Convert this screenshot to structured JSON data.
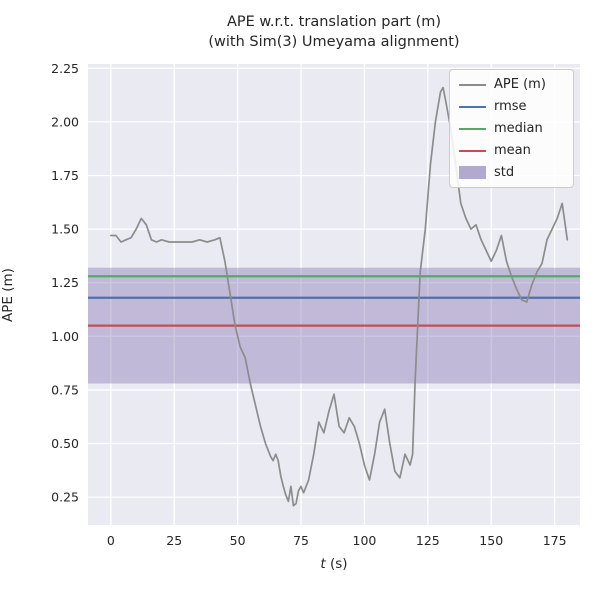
{
  "title_line1": "APE w.r.t. translation part (m)",
  "title_line2": "(with Sim(3) Umeyama alignment)",
  "labels": {
    "xlabel_var": "t",
    "xlabel_unit": " (s)",
    "ylabel": "APE (m)"
  },
  "legend": {
    "ape": "APE (m)",
    "rmse": "rmse",
    "median": "median",
    "mean": "mean",
    "std": "std"
  },
  "chart_data": {
    "type": "line",
    "title": "APE w.r.t. translation part (m)\n(with Sim(3) Umeyama alignment)",
    "xlabel": "t (s)",
    "ylabel": "APE (m)",
    "xlim": [
      -9,
      185
    ],
    "ylim": [
      0.12,
      2.27
    ],
    "xticks": [
      0,
      25,
      50,
      75,
      100,
      125,
      150,
      175
    ],
    "yticks": [
      0.25,
      0.5,
      0.75,
      1.0,
      1.25,
      1.5,
      1.75,
      2.0,
      2.25
    ],
    "grid": true,
    "legend_position": "upper right",
    "colors": {
      "plot_bg": "#eaeaf2",
      "grid": "#ffffff",
      "text": "#262626"
    },
    "series": [
      {
        "name": "APE (m)",
        "color": "#8c8c8c",
        "x": [
          0,
          2,
          4,
          6,
          8,
          10,
          12,
          14,
          16,
          18,
          20,
          23,
          26,
          29,
          32,
          35,
          38,
          41,
          43,
          45,
          47,
          49,
          51,
          53,
          55,
          57,
          59,
          61,
          63,
          64,
          65,
          66,
          67,
          68,
          69,
          70,
          71,
          72,
          73,
          74,
          75,
          76,
          78,
          80,
          82,
          84,
          86,
          88,
          90,
          92,
          94,
          96,
          98,
          100,
          102,
          104,
          106,
          108,
          110,
          112,
          114,
          116,
          118,
          119,
          120,
          122,
          124,
          126,
          128,
          130,
          131,
          132,
          134,
          136,
          138,
          140,
          142,
          144,
          146,
          148,
          150,
          152,
          154,
          156,
          158,
          160,
          162,
          164,
          166,
          168,
          170,
          172,
          174,
          176,
          178,
          180
        ],
        "y": [
          1.47,
          1.47,
          1.44,
          1.45,
          1.46,
          1.5,
          1.55,
          1.52,
          1.45,
          1.44,
          1.45,
          1.44,
          1.44,
          1.44,
          1.44,
          1.45,
          1.44,
          1.45,
          1.46,
          1.35,
          1.2,
          1.05,
          0.95,
          0.9,
          0.78,
          0.68,
          0.58,
          0.5,
          0.44,
          0.42,
          0.45,
          0.42,
          0.35,
          0.3,
          0.26,
          0.23,
          0.3,
          0.21,
          0.22,
          0.28,
          0.3,
          0.27,
          0.33,
          0.45,
          0.6,
          0.55,
          0.65,
          0.73,
          0.58,
          0.55,
          0.62,
          0.58,
          0.5,
          0.4,
          0.33,
          0.45,
          0.6,
          0.66,
          0.5,
          0.37,
          0.34,
          0.45,
          0.4,
          0.45,
          0.8,
          1.3,
          1.5,
          1.8,
          2.0,
          2.14,
          2.16,
          2.1,
          1.97,
          1.8,
          1.62,
          1.55,
          1.5,
          1.52,
          1.45,
          1.4,
          1.35,
          1.4,
          1.47,
          1.35,
          1.28,
          1.22,
          1.17,
          1.16,
          1.24,
          1.3,
          1.34,
          1.45,
          1.5,
          1.55,
          1.62,
          1.45
        ]
      }
    ],
    "stat_lines": [
      {
        "name": "rmse",
        "value": 1.18,
        "color": "#4c72b0"
      },
      {
        "name": "median",
        "value": 1.28,
        "color": "#55a868"
      },
      {
        "name": "mean",
        "value": 1.05,
        "color": "#c44e52"
      }
    ],
    "std_band": {
      "name": "std",
      "low": 0.78,
      "high": 1.32,
      "color": "#8172b2",
      "alpha": 0.4
    }
  }
}
